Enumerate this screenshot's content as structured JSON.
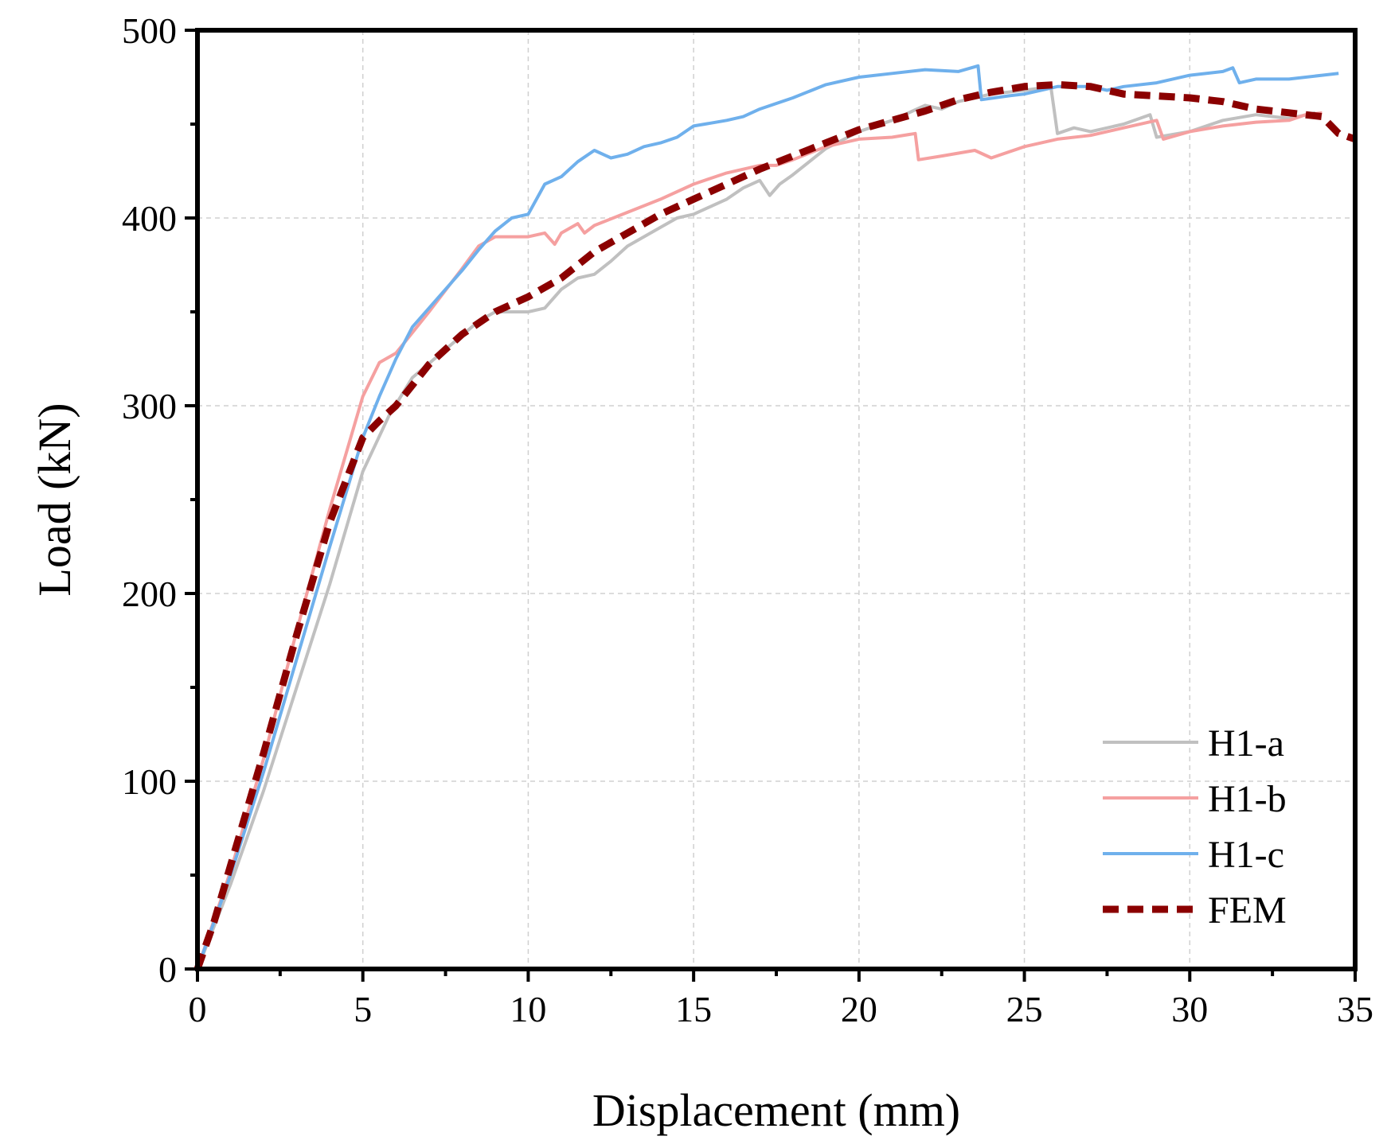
{
  "chart_data": {
    "type": "line",
    "title": "",
    "xlabel": "Displacement (mm)",
    "ylabel": "Load (kN)",
    "xlim": [
      0,
      35
    ],
    "ylim": [
      0,
      500
    ],
    "xticks": [
      0,
      5,
      10,
      15,
      20,
      25,
      30,
      35
    ],
    "yticks": [
      0,
      100,
      200,
      300,
      400,
      500
    ],
    "xtick_labels": [
      "0",
      "5",
      "10",
      "15",
      "20",
      "25",
      "30",
      "35"
    ],
    "ytick_labels": [
      "0",
      "100",
      "200",
      "300",
      "400",
      "500"
    ],
    "grid": true,
    "legend_position": "bottom-right",
    "series": [
      {
        "name": "H1-a",
        "color": "#c0c0c0",
        "style": "solid",
        "points": [
          [
            0,
            0
          ],
          [
            1,
            45
          ],
          [
            2,
            95
          ],
          [
            3,
            150
          ],
          [
            4,
            205
          ],
          [
            5,
            265
          ],
          [
            5.8,
            295
          ],
          [
            6.5,
            315
          ],
          [
            7.5,
            330
          ],
          [
            8.5,
            345
          ],
          [
            9,
            350
          ],
          [
            10,
            350
          ],
          [
            10.5,
            352
          ],
          [
            11,
            362
          ],
          [
            11.5,
            368
          ],
          [
            12,
            370
          ],
          [
            12.5,
            377
          ],
          [
            13,
            385
          ],
          [
            14,
            395
          ],
          [
            14.5,
            400
          ],
          [
            15,
            402
          ],
          [
            16,
            410
          ],
          [
            16.5,
            416
          ],
          [
            17,
            420
          ],
          [
            17.3,
            412
          ],
          [
            17.6,
            418
          ],
          [
            18,
            423
          ],
          [
            18.5,
            430
          ],
          [
            19,
            437
          ],
          [
            20,
            446
          ],
          [
            21,
            452
          ],
          [
            22,
            460
          ],
          [
            22.5,
            458
          ],
          [
            23,
            462
          ],
          [
            24,
            466
          ],
          [
            25,
            468
          ],
          [
            25.8,
            470
          ],
          [
            26,
            445
          ],
          [
            26.5,
            448
          ],
          [
            27,
            446
          ],
          [
            28,
            450
          ],
          [
            28.8,
            455
          ],
          [
            29,
            443
          ],
          [
            30,
            446
          ],
          [
            31,
            452
          ],
          [
            32,
            455
          ],
          [
            33,
            453
          ],
          [
            33.8,
            456
          ]
        ]
      },
      {
        "name": "H1-b",
        "color": "#f5a0a0",
        "style": "solid",
        "points": [
          [
            0,
            0
          ],
          [
            1,
            52
          ],
          [
            2,
            112
          ],
          [
            3,
            180
          ],
          [
            4,
            245
          ],
          [
            5,
            305
          ],
          [
            5.5,
            323
          ],
          [
            6,
            328
          ],
          [
            7,
            350
          ],
          [
            8,
            373
          ],
          [
            8.5,
            385
          ],
          [
            9,
            390
          ],
          [
            10,
            390
          ],
          [
            10.5,
            392
          ],
          [
            10.8,
            386
          ],
          [
            11,
            392
          ],
          [
            11.5,
            397
          ],
          [
            11.7,
            392
          ],
          [
            12,
            396
          ],
          [
            13,
            403
          ],
          [
            14,
            410
          ],
          [
            15,
            418
          ],
          [
            15.5,
            421
          ],
          [
            16,
            424
          ],
          [
            17,
            428
          ],
          [
            17.5,
            428
          ],
          [
            18,
            431
          ],
          [
            19,
            438
          ],
          [
            20,
            442
          ],
          [
            21,
            443
          ],
          [
            21.7,
            445
          ],
          [
            21.8,
            431
          ],
          [
            22.5,
            433
          ],
          [
            23.5,
            436
          ],
          [
            24,
            432
          ],
          [
            25,
            438
          ],
          [
            26,
            442
          ],
          [
            27,
            444
          ],
          [
            28,
            448
          ],
          [
            29,
            452
          ],
          [
            29.2,
            442
          ],
          [
            30,
            446
          ],
          [
            31,
            449
          ],
          [
            32,
            451
          ],
          [
            33,
            452
          ],
          [
            33.5,
            455
          ],
          [
            34,
            456
          ]
        ]
      },
      {
        "name": "H1-c",
        "color": "#6fb0ec",
        "style": "solid",
        "points": [
          [
            0,
            0
          ],
          [
            1,
            50
          ],
          [
            2,
            105
          ],
          [
            3,
            165
          ],
          [
            4,
            225
          ],
          [
            5,
            283
          ],
          [
            5.5,
            305
          ],
          [
            6,
            325
          ],
          [
            6.5,
            342
          ],
          [
            7,
            352
          ],
          [
            8,
            372
          ],
          [
            8.5,
            383
          ],
          [
            9,
            393
          ],
          [
            9.5,
            400
          ],
          [
            10,
            402
          ],
          [
            10.5,
            418
          ],
          [
            11,
            422
          ],
          [
            11.5,
            430
          ],
          [
            12,
            436
          ],
          [
            12.5,
            432
          ],
          [
            13,
            434
          ],
          [
            13.5,
            438
          ],
          [
            14,
            440
          ],
          [
            14.5,
            443
          ],
          [
            15,
            449
          ],
          [
            16,
            452
          ],
          [
            16.5,
            454
          ],
          [
            17,
            458
          ],
          [
            18,
            464
          ],
          [
            19,
            471
          ],
          [
            20,
            475
          ],
          [
            21,
            477
          ],
          [
            22,
            479
          ],
          [
            23,
            478
          ],
          [
            23.6,
            481
          ],
          [
            23.7,
            463
          ],
          [
            24.5,
            465
          ],
          [
            25,
            466
          ],
          [
            25.5,
            468
          ],
          [
            26,
            470
          ],
          [
            27,
            470
          ],
          [
            27.5,
            468
          ],
          [
            28,
            470
          ],
          [
            29,
            472
          ],
          [
            30,
            476
          ],
          [
            30.5,
            477
          ],
          [
            31,
            478
          ],
          [
            31.3,
            480
          ],
          [
            31.5,
            472
          ],
          [
            32,
            474
          ],
          [
            33,
            474
          ],
          [
            34,
            476
          ],
          [
            34.5,
            477
          ]
        ]
      },
      {
        "name": "FEM",
        "color": "#8b0000",
        "style": "dashed",
        "points": [
          [
            0,
            0
          ],
          [
            0.5,
            25
          ],
          [
            1,
            55
          ],
          [
            2,
            115
          ],
          [
            3,
            178
          ],
          [
            4,
            238
          ],
          [
            5,
            283
          ],
          [
            5.5,
            292
          ],
          [
            6,
            300
          ],
          [
            7,
            322
          ],
          [
            8,
            338
          ],
          [
            9,
            350
          ],
          [
            10,
            358
          ],
          [
            11,
            368
          ],
          [
            12,
            382
          ],
          [
            13,
            392
          ],
          [
            14,
            402
          ],
          [
            15,
            410
          ],
          [
            16,
            418
          ],
          [
            17,
            426
          ],
          [
            18,
            433
          ],
          [
            19,
            440
          ],
          [
            20,
            447
          ],
          [
            21,
            452
          ],
          [
            22,
            457
          ],
          [
            23,
            463
          ],
          [
            24,
            467
          ],
          [
            25,
            470
          ],
          [
            26,
            471
          ],
          [
            27,
            470
          ],
          [
            28,
            466
          ],
          [
            29,
            465
          ],
          [
            30,
            464
          ],
          [
            31,
            462
          ],
          [
            32,
            458
          ],
          [
            33,
            456
          ],
          [
            34,
            454
          ],
          [
            34.5,
            445
          ],
          [
            35,
            442
          ]
        ]
      }
    ]
  }
}
